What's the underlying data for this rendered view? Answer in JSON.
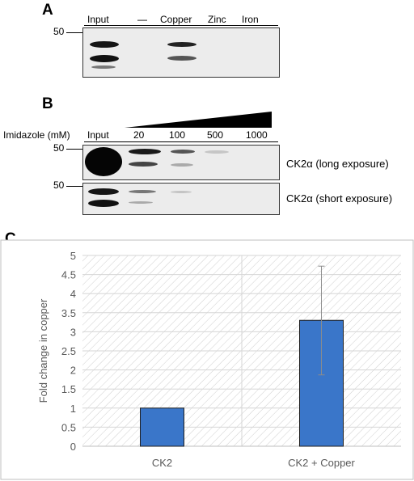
{
  "panel_a": {
    "letter": "A",
    "lanes": [
      "Input",
      "—",
      "Copper",
      "Zinc",
      "Iron"
    ],
    "mw_marker": "50"
  },
  "panel_b": {
    "letter": "B",
    "gradient_label": "Imidazole (mM)",
    "lanes": [
      "Input",
      "20",
      "100",
      "500",
      "1000"
    ],
    "mw_marker_top": "50",
    "mw_marker_bottom": "50",
    "blot_top_label": "CK2α (long exposure)",
    "blot_bottom_label": "CK2α (short exposure)"
  },
  "panel_c": {
    "letter": "C",
    "chart_data": {
      "type": "bar",
      "categories": [
        "CK2",
        "CK2 + Copper"
      ],
      "values": [
        1.0,
        3.3
      ],
      "error_low": [
        1.0,
        1.87
      ],
      "error_high": [
        1.0,
        4.72
      ],
      "ylabel": "Fold change in copper",
      "xlabel": "",
      "ylim": [
        0,
        5
      ],
      "yticks": [
        "0",
        "0.5",
        "1",
        "1.5",
        "2",
        "2.5",
        "3",
        "3.5",
        "4",
        "4.5",
        "5"
      ],
      "grid": true,
      "bar_color": "#3a76c9"
    }
  }
}
